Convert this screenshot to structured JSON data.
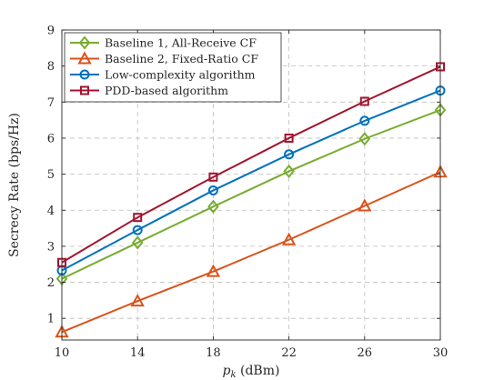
{
  "chart_data": {
    "type": "line",
    "xlabel_main": "p",
    "xlabel_sub": "k",
    "xlabel_unit": " (dBm)",
    "ylabel": "Secrecy Rate (bps/Hz)",
    "xlim": [
      10,
      30
    ],
    "ylim": [
      0.4,
      9
    ],
    "x": [
      10,
      14,
      18,
      22,
      26,
      30
    ],
    "x_ticks": [
      "10",
      "14",
      "18",
      "22",
      "26",
      "30"
    ],
    "y_ticks": [
      1,
      2,
      3,
      4,
      5,
      6,
      7,
      8,
      9
    ],
    "y_tick_labels": [
      "1",
      "2",
      "3",
      "4",
      "5",
      "6",
      "7",
      "8",
      "9"
    ],
    "grid": true,
    "legend_position": "top-left",
    "series": [
      {
        "name": "Baseline 1, All-Receive CF",
        "marker": "diamond",
        "color": "#77ac30",
        "values": [
          2.1,
          3.1,
          4.1,
          5.08,
          5.98,
          6.78
        ]
      },
      {
        "name": "Baseline 2, Fixed-Ratio CF",
        "marker": "triangle",
        "color": "#d95319",
        "values": [
          0.62,
          1.48,
          2.3,
          3.18,
          4.12,
          5.06
        ]
      },
      {
        "name": "Low-complexity algorithm",
        "marker": "circle",
        "color": "#0072bd",
        "values": [
          2.33,
          3.45,
          4.55,
          5.55,
          6.48,
          7.32
        ]
      },
      {
        "name": "PDD-based algorithm",
        "marker": "square",
        "color": "#a2142f",
        "values": [
          2.55,
          3.8,
          4.92,
          6.0,
          7.02,
          7.98
        ]
      }
    ]
  }
}
